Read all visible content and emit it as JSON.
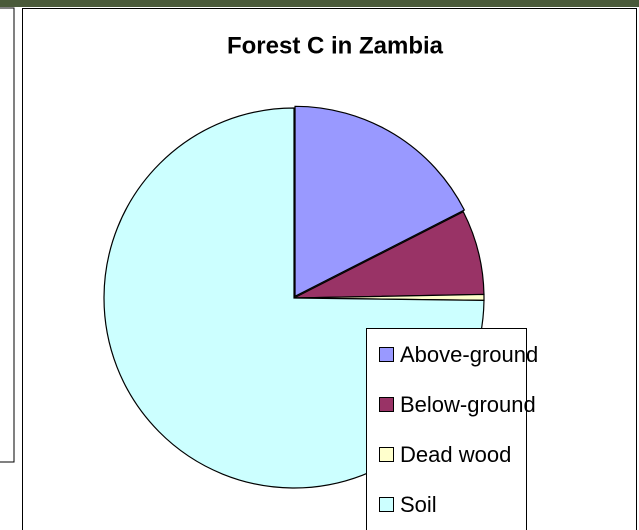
{
  "chart_data": {
    "type": "pie",
    "title": "Forest C in Zambia",
    "categories": [
      "Above-ground",
      "Below-ground",
      "Dead wood",
      "Soil"
    ],
    "values": [
      17.5,
      7.2,
      0.5,
      74.8
    ],
    "colors": [
      "#9999ff",
      "#993366",
      "#ffffcc",
      "#ccffff"
    ],
    "legend": "bottom-right"
  }
}
